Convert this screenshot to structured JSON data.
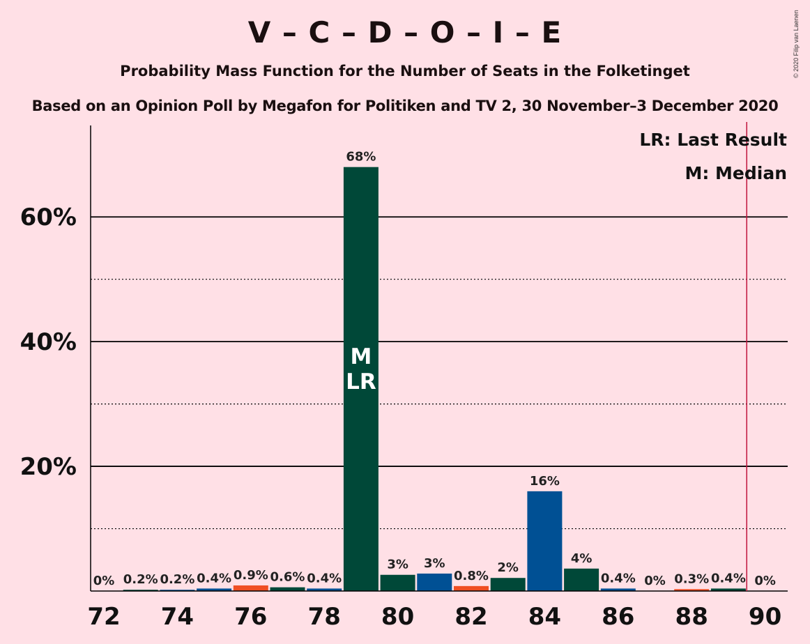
{
  "title": "V – C – D – O – I – E",
  "subtitle": "Probability Mass Function for the Number of Seats in the Folketinget",
  "subtitle2": "Based on an Opinion Poll by Megafon for Politiken and TV 2, 30 November–3 December 2020",
  "copyright": "© 2020 Filip van Laenen",
  "colors": {
    "background": "#FFE0E6",
    "venstre_blue": "#005094",
    "dark_green": "#004838",
    "orange": "#F04E23",
    "majority_line": "#C0143C"
  },
  "chart_data": {
    "type": "bar",
    "x": [
      72,
      73,
      74,
      75,
      76,
      77,
      78,
      79,
      80,
      81,
      82,
      83,
      84,
      85,
      86,
      87,
      88,
      89,
      90
    ],
    "values": [
      0,
      0.2,
      0.2,
      0.4,
      0.9,
      0.6,
      0.4,
      68,
      2.6,
      2.8,
      0.8,
      2.1,
      16,
      3.6,
      0.4,
      0,
      0.3,
      0.4,
      0
    ],
    "data_labels": [
      "0%",
      "0.2%",
      "0.2%",
      "0.4%",
      "0.9%",
      "0.6%",
      "0.4%",
      "68%",
      "3%",
      "3%",
      "0.8%",
      "2%",
      "16%",
      "4%",
      "0.4%",
      "0%",
      "0.3%",
      "0.4%",
      "0%"
    ],
    "bar_colors": [
      "#005094",
      "#004838",
      "#005094",
      "#005094",
      "#F04E23",
      "#004838",
      "#005094",
      "#004838",
      "#004838",
      "#005094",
      "#F04E23",
      "#004838",
      "#005094",
      "#004838",
      "#005094",
      "#004838",
      "#F04E23",
      "#004838",
      "#005094"
    ],
    "x_ticks": [
      "72",
      "74",
      "76",
      "78",
      "80",
      "82",
      "84",
      "86",
      "88",
      "90"
    ],
    "y_ticks": [
      "20%",
      "40%",
      "60%"
    ],
    "y_tick_values": [
      20,
      40,
      60
    ],
    "y_minor_gridlines": [
      10,
      30,
      50
    ],
    "ylim": [
      0,
      74
    ],
    "xlim": [
      71.5,
      90.5
    ],
    "median_seat": 79,
    "last_result_seat": 79,
    "median_label": "M",
    "last_result_label": "LR",
    "majority_line_x": 89.5,
    "legend": [
      "LR: Last Result",
      "M: Median"
    ],
    "legend_position": "top-right",
    "grid": true
  }
}
